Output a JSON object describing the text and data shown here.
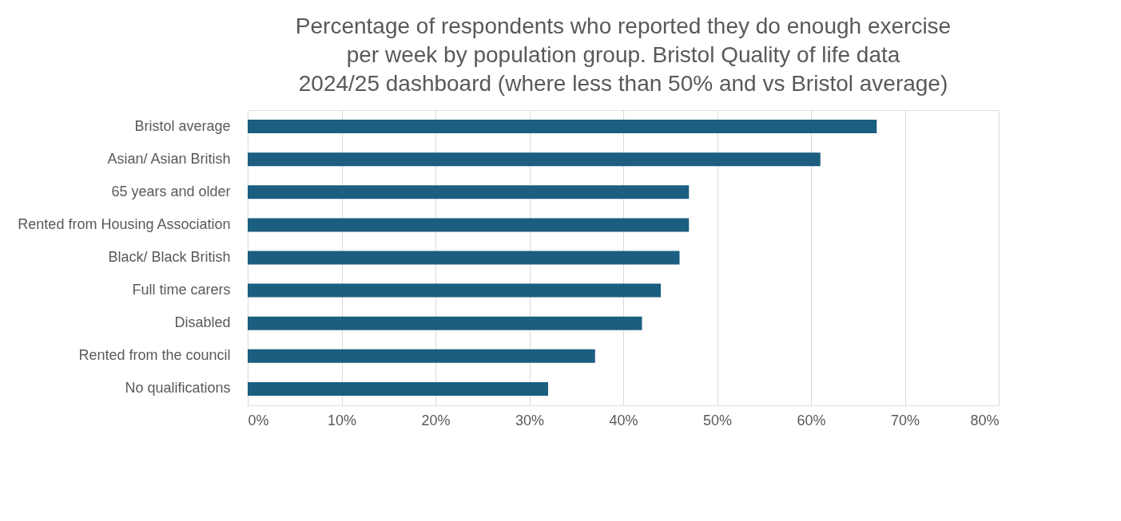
{
  "chart_data": {
    "type": "bar",
    "orientation": "horizontal",
    "title": "Percentage of respondents who reported they do enough exercise per week by population group. Bristol Quality of life data 2024/25 dashboard (where less than 50% and vs Bristol average)",
    "categories": [
      "Bristol average",
      "Asian/ Asian British",
      "65 years and older",
      "Rented from Housing Association",
      "Black/ Black British",
      "Full time carers",
      "Disabled",
      "Rented from the council",
      "No qualifications"
    ],
    "values": [
      67,
      61,
      47,
      47,
      46,
      44,
      42,
      37,
      32
    ],
    "color": "#1b5e80",
    "xlim": [
      0,
      80
    ],
    "xticks": [
      {
        "value": 0,
        "label": "0%"
      },
      {
        "value": 10,
        "label": "10%"
      },
      {
        "value": 20,
        "label": "20%"
      },
      {
        "value": 30,
        "label": "30%"
      },
      {
        "value": 40,
        "label": "40%"
      },
      {
        "value": 50,
        "label": "50%"
      },
      {
        "value": 60,
        "label": "60%"
      },
      {
        "value": 70,
        "label": "70%"
      },
      {
        "value": 80,
        "label": "80%"
      }
    ],
    "grid": "x"
  }
}
